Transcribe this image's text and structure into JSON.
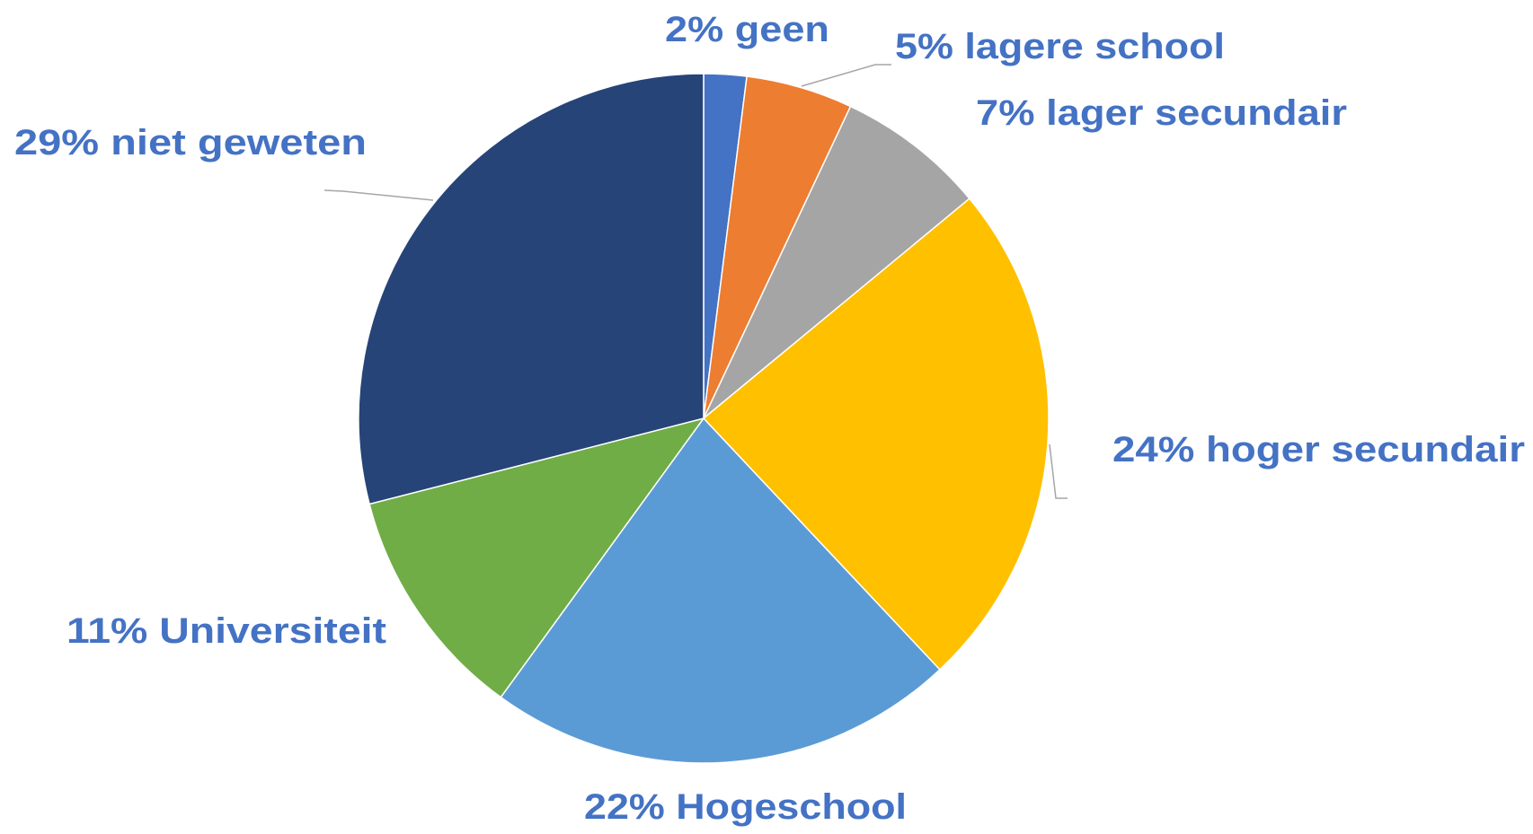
{
  "chart_data": {
    "type": "pie",
    "categories": [
      "geen",
      "lagere school",
      "lager secundair",
      "hoger secundair",
      "Hogeschool",
      "Universiteit",
      "niet geweten"
    ],
    "values": [
      2,
      5,
      7,
      24,
      22,
      11,
      29
    ],
    "value_labels": [
      "2%",
      "5%",
      "7%",
      "24%",
      "22%",
      "11%",
      "29%"
    ],
    "colors": [
      "#4472c4",
      "#ed7d31",
      "#a5a5a5",
      "#ffc000",
      "#5b9bd5",
      "#70ad47",
      "#264478"
    ]
  }
}
